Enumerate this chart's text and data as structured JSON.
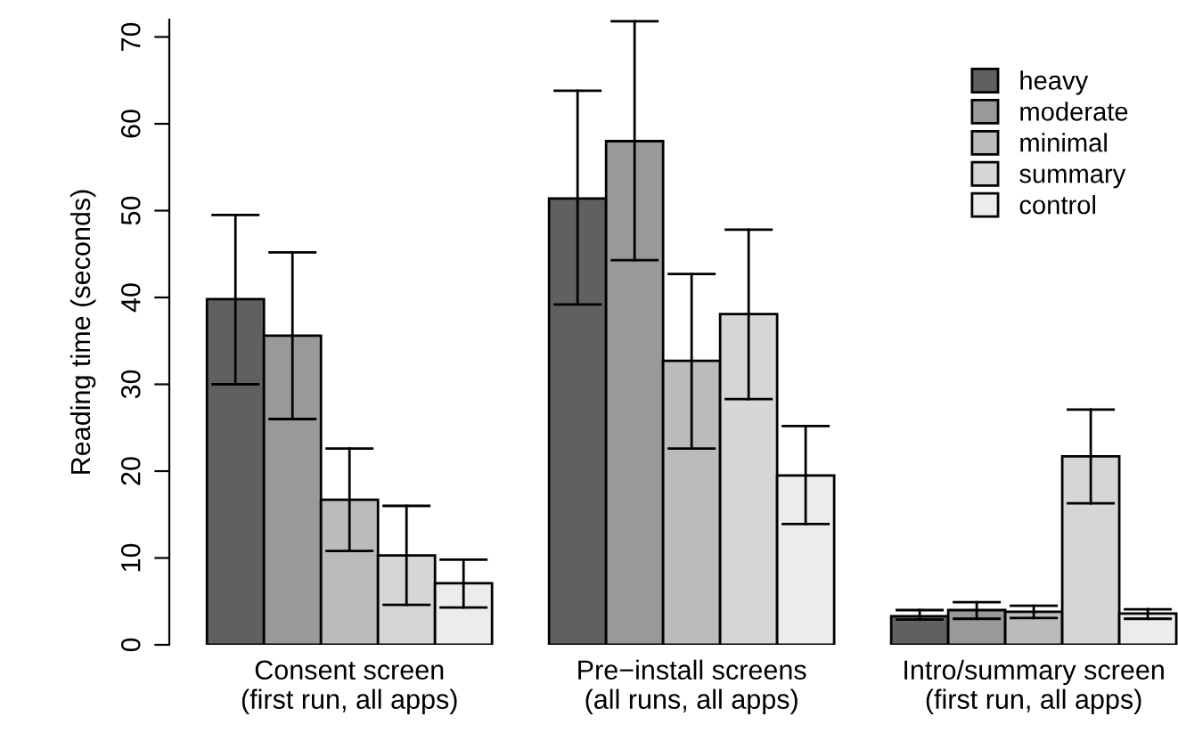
{
  "chart_data": {
    "type": "bar",
    "ylabel": "Reading time (seconds)",
    "categories": [
      "Consent screen\n(first run, all apps)",
      "Pre−install screens\n(all runs, all apps)",
      "Intro/summary screen\n(first run, all apps)"
    ],
    "series": [
      {
        "name": "heavy",
        "color": "#5f605f",
        "values": [
          39.8,
          51.4,
          3.3
        ],
        "errors": [
          [
            30.0,
            49.5
          ],
          [
            39.2,
            63.8
          ],
          [
            2.9,
            4.0
          ]
        ]
      },
      {
        "name": "moderate",
        "color": "#999999",
        "values": [
          35.6,
          58.0,
          4.0
        ],
        "errors": [
          [
            26.0,
            45.2
          ],
          [
            44.3,
            71.8
          ],
          [
            3.0,
            4.9
          ]
        ]
      },
      {
        "name": "minimal",
        "color": "#bbbbbb",
        "values": [
          16.7,
          32.7,
          3.8
        ],
        "errors": [
          [
            10.8,
            22.6
          ],
          [
            22.6,
            42.7
          ],
          [
            3.1,
            4.5
          ]
        ]
      },
      {
        "name": "summary",
        "color": "#d6d6d6",
        "values": [
          10.3,
          38.1,
          21.7
        ],
        "errors": [
          [
            4.6,
            16.0
          ],
          [
            28.3,
            47.8
          ],
          [
            16.3,
            27.1
          ]
        ]
      },
      {
        "name": "control",
        "color": "#ececec",
        "values": [
          7.1,
          19.5,
          3.6
        ],
        "errors": [
          [
            4.3,
            9.8
          ],
          [
            13.9,
            25.2
          ],
          [
            3.0,
            4.1
          ]
        ]
      }
    ],
    "ylim": [
      0,
      72
    ],
    "yticks": [
      0,
      10,
      20,
      30,
      40,
      50,
      60,
      70
    ],
    "grid": false,
    "legend": "top right"
  }
}
